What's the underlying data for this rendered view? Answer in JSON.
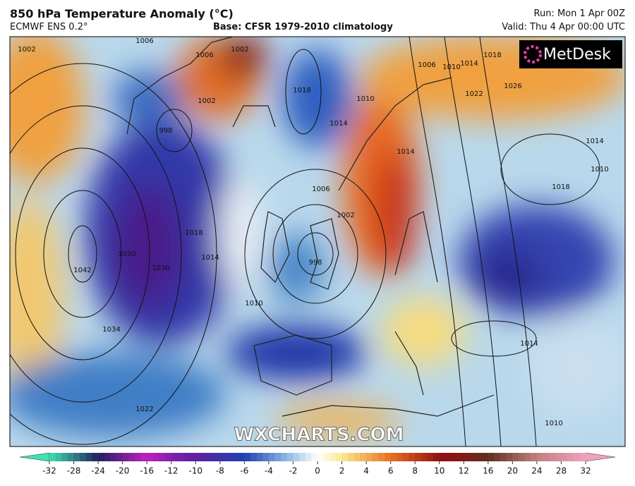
{
  "header": {
    "title": "850 hPa Temperature Anomaly (°C)",
    "model": "ECMWF ENS 0.2°",
    "base": "Base: CFSR 1979-2010 climatology",
    "run": "Run: Mon 1 Apr 00Z",
    "valid": "Valid: Thu 4 Apr 00:00 UTC"
  },
  "map": {
    "logo": "MetDesk",
    "watermark": "WXCHARTS.COM",
    "contour_labels": [
      "1002",
      "1006",
      "1006",
      "1002",
      "1002",
      "998",
      "1018",
      "1014",
      "1010",
      "1006",
      "1010",
      "1014",
      "1018",
      "1022",
      "1026",
      "1014",
      "1006",
      "1002",
      "998",
      "1042",
      "1030",
      "1030",
      "1018",
      "1014",
      "1010",
      "1034",
      "1022",
      "1014",
      "1010",
      "1014",
      "1010",
      "1018"
    ]
  },
  "colorbar": {
    "ticks": [
      -32,
      -28,
      -24,
      -20,
      -16,
      -12,
      -10,
      -8,
      -6,
      -4,
      -2,
      0,
      2,
      4,
      6,
      8,
      10,
      12,
      16,
      20,
      24,
      28,
      32
    ]
  }
}
